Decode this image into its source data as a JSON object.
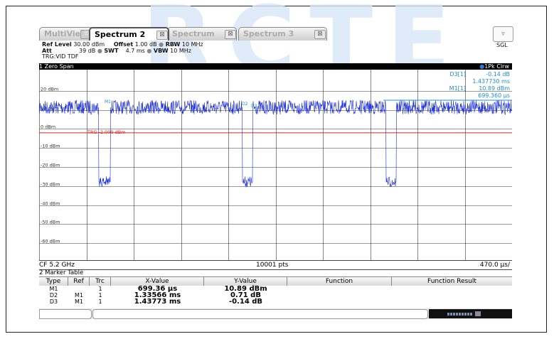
{
  "watermark": "RCTE",
  "tabs": [
    {
      "label": "MultiView",
      "state": "inactive"
    },
    {
      "label": "Spectrum 2",
      "state": "active"
    },
    {
      "label": "Spectrum",
      "state": "inactive"
    },
    {
      "label": "Spectrum 3",
      "state": "inactive"
    }
  ],
  "dropdown_glyph": "▿",
  "params": {
    "ref_level_label": "Ref Level",
    "ref_level_value": "30.00 dBm",
    "offset_label": "Offset",
    "offset_value": "1.00 dB",
    "rbw_label": "RBW",
    "rbw_value": "10 MHz",
    "att_label": "Att",
    "att_value": "39 dB",
    "swt_label": "SWT",
    "swt_value": "4.7 ms",
    "vbw_label": "VBW",
    "vbw_value": "10 MHz",
    "trigger": "TRG:VID TDF",
    "mode": "SGL"
  },
  "window": {
    "title": "1 Zero Span",
    "trace_info": "1Pk Clrw",
    "markers_readout": [
      {
        "name": "D3[1]",
        "value": "-0.14 dB"
      },
      {
        "name": "",
        "value": "1.437730 ms"
      },
      {
        "name": "M1[1]",
        "value": "10.89 dBm"
      },
      {
        "name": "",
        "value": "699.360 µs"
      }
    ],
    "y_ticks": [
      "20 dBm",
      "10 dBm",
      "0 dBm",
      "-10 dBm",
      "-20 dBm",
      "-30 dBm",
      "-40 dBm",
      "-50 dBm",
      "-60 dBm"
    ],
    "trigger_label": "TRG -2.000 dBm",
    "marker_labels": [
      "M1",
      "D2",
      "D3"
    ],
    "footer_left": "CF 5.2 GHz",
    "footer_center": "10001 pts",
    "footer_right": "470.0 µs/"
  },
  "colors": {
    "trace": "#1c2fd8",
    "marker": "#1a8fd8",
    "trigger": "#e02020",
    "grid": "#000000"
  },
  "marker_table": {
    "title": "2 Marker Table",
    "headers": [
      "Type",
      "Ref",
      "Trc",
      "X-Value",
      "Y-Value",
      "Function",
      "Function Result"
    ],
    "rows": [
      {
        "type": "M1",
        "ref": "",
        "trc": "1",
        "x": "699.36 µs",
        "y": "10.89 dBm",
        "function": "",
        "result": ""
      },
      {
        "type": "D2",
        "ref": "M1",
        "trc": "1",
        "x": "1.33566 ms",
        "y": "0.71 dB",
        "function": "",
        "result": ""
      },
      {
        "type": "D3",
        "ref": "M1",
        "trc": "1",
        "x": "1.43773 ms",
        "y": "-0.14 dB",
        "function": "",
        "result": ""
      }
    ]
  }
}
